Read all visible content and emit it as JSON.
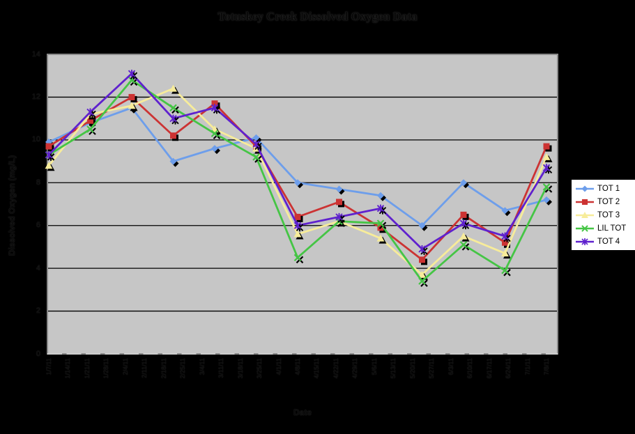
{
  "chart_data": {
    "type": "line",
    "title": "Totuskey Creek Dissolved Oxygen Data",
    "xlabel": "Date",
    "ylabel": "Dissolved Oxygen (mg/L)",
    "ylim": [
      0,
      14
    ],
    "y_ticks": [
      0,
      2,
      4,
      6,
      8,
      10,
      12,
      14
    ],
    "grid": "horizontal-black",
    "legend_position": "right",
    "colors": {
      "page_background": "#000000",
      "plot_background": "#C6C6C6",
      "gridline": "#000000",
      "plot_border": "#8A8A8A",
      "legend_background": "#FFFFFF"
    },
    "x_tick_labels": [
      "1/7/11",
      "1/14/11",
      "1/21/11",
      "1/28/11",
      "2/4/11",
      "2/11/11",
      "2/18/11",
      "2/25/11",
      "3/4/11",
      "3/11/11",
      "3/18/11",
      "3/25/11",
      "4/1/11",
      "4/8/11",
      "4/15/11",
      "4/22/11",
      "4/29/11",
      "5/6/11",
      "5/13/11",
      "5/20/11",
      "5/27/11",
      "6/3/11",
      "6/10/11",
      "6/17/11",
      "6/24/11",
      "7/1/11",
      "7/8/11"
    ],
    "sample_dates": [
      "1/7/11",
      "1/21/11",
      "2/4/11",
      "2/18/11",
      "3/4/11",
      "3/18/11",
      "4/1/11",
      "4/15/11",
      "4/29/11",
      "5/13/11",
      "5/27/11",
      "6/10/11",
      "6/24/11"
    ],
    "series": [
      {
        "name": "TOT 1",
        "color": "#6D9EEB",
        "marker": "diamond",
        "values": [
          9.9,
          10.8,
          11.5,
          9.0,
          9.6,
          10.1,
          8.0,
          7.7,
          7.4,
          6.0,
          8.0,
          6.7,
          7.2
        ]
      },
      {
        "name": "TOT 2",
        "color": "#CC3333",
        "marker": "square",
        "values": [
          9.7,
          10.9,
          12.0,
          10.2,
          11.7,
          9.7,
          6.4,
          7.1,
          5.9,
          4.4,
          6.5,
          5.2,
          9.7
        ]
      },
      {
        "name": "TOT 3",
        "color": "#F7EC9A",
        "marker": "triangle",
        "values": [
          8.8,
          11.2,
          11.6,
          12.4,
          10.5,
          9.6,
          5.6,
          6.2,
          5.4,
          3.7,
          5.5,
          4.7,
          9.2
        ]
      },
      {
        "name": "LIL TOT",
        "color": "#45C545",
        "marker": "x",
        "values": [
          9.3,
          10.5,
          12.8,
          11.5,
          10.3,
          9.2,
          4.5,
          6.2,
          6.1,
          3.4,
          5.1,
          3.9,
          7.8
        ]
      },
      {
        "name": "TOT 4",
        "color": "#5F21CE",
        "marker": "asterisk",
        "values": [
          9.3,
          11.3,
          13.1,
          11.0,
          11.5,
          9.8,
          6.0,
          6.4,
          6.8,
          4.9,
          6.1,
          5.5,
          8.7
        ]
      }
    ]
  }
}
